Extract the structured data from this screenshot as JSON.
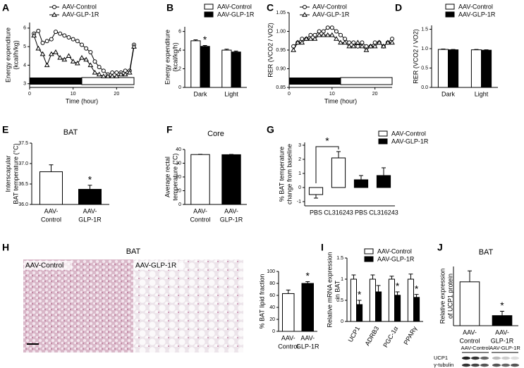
{
  "chart_data": [
    {
      "type": "line",
      "label": "A",
      "ylabel": [
        "Energy expenditure",
        "(kcal/h/kg)"
      ],
      "xlabel": "Time (hour)",
      "x": [
        1,
        2,
        3,
        4,
        5,
        6,
        7,
        8,
        9,
        10,
        11,
        12,
        13,
        14,
        15,
        16,
        17,
        18,
        19,
        20,
        21,
        22,
        23,
        24
      ],
      "series": [
        {
          "name": "AAV-Control",
          "color": "#000000",
          "marker": "circle",
          "values": [
            5.7,
            5.85,
            5.2,
            5.3,
            5.4,
            5.8,
            5.7,
            5.6,
            5.5,
            5.4,
            5.3,
            5.1,
            4.9,
            4.7,
            4.2,
            3.9,
            3.7,
            3.5,
            3.6,
            3.6,
            3.6,
            3.7,
            3.7,
            5.1
          ]
        },
        {
          "name": "AAV-GLP-1R",
          "color": "#000000",
          "marker": "triangle",
          "values": [
            5.6,
            4.9,
            4.6,
            4.0,
            4.6,
            4.7,
            4.4,
            4.3,
            4.5,
            4.2,
            4.1,
            4.4,
            4.3,
            4.0,
            3.6,
            3.5,
            3.4,
            3.4,
            3.4,
            3.4,
            3.5,
            3.5,
            3.6,
            5.0
          ]
        }
      ],
      "xlim": [
        0,
        24
      ],
      "xticks": [
        0,
        10,
        20
      ],
      "ylim": [
        2.8,
        6.3
      ],
      "yticks": [
        3,
        4,
        5,
        6
      ],
      "dark": [
        0,
        12
      ],
      "legend": "top"
    },
    {
      "type": "bar",
      "label": "B",
      "ylabel": [
        "Energy expenditure",
        "(kcal/kg/h)"
      ],
      "categories": [
        [
          "Dark"
        ],
        [
          "Light"
        ]
      ],
      "series": [
        {
          "name": "AAV-Control",
          "color": "#ffffff",
          "values": [
            5.0,
            4.0
          ],
          "errors": [
            0.1,
            0.1
          ]
        },
        {
          "name": "AAV-GLP-1R",
          "color": "#000000",
          "values": [
            4.4,
            3.8
          ],
          "errors": [
            0.1,
            0.1
          ],
          "annotations": [
            "*",
            null
          ]
        }
      ],
      "ylim": [
        0,
        6.5
      ],
      "yticks": [
        0,
        2,
        4,
        6
      ],
      "legend": "top"
    },
    {
      "type": "line",
      "label": "C",
      "ylabel": [
        "RER (VCO2 / VO2)"
      ],
      "xlabel": "Time (hour)",
      "x": [
        1,
        2,
        3,
        4,
        5,
        6,
        7,
        8,
        9,
        10,
        11,
        12,
        13,
        14,
        15,
        16,
        17,
        18,
        19,
        20,
        21,
        22,
        23,
        24
      ],
      "series": [
        {
          "name": "AAV-Control",
          "color": "#000000",
          "marker": "circle",
          "values": [
            0.96,
            0.97,
            0.98,
            0.98,
            0.99,
            0.99,
            1.0,
            1.0,
            1.01,
            1.01,
            1.0,
            0.99,
            0.98,
            0.97,
            0.97,
            0.96,
            0.97,
            0.96,
            0.96,
            0.97,
            0.97,
            0.96,
            0.97,
            0.98
          ]
        },
        {
          "name": "AAV-GLP-1R",
          "color": "#000000",
          "marker": "triangle",
          "values": [
            0.95,
            0.97,
            0.97,
            0.98,
            0.98,
            0.98,
            0.99,
            0.99,
            0.99,
            0.99,
            0.98,
            0.97,
            0.97,
            0.96,
            0.96,
            0.97,
            0.96,
            0.95,
            0.96,
            0.96,
            0.97,
            0.96,
            0.97,
            0.97
          ]
        }
      ],
      "xlim": [
        0,
        24
      ],
      "xticks": [
        0,
        10,
        20
      ],
      "ylim": [
        0.85,
        1.05
      ],
      "yticks": [
        0.85,
        {
          "value": 0.9,
          "label": "0.90"
        },
        0.95,
        {
          "value": 1,
          "label": "1.00"
        },
        1.05
      ],
      "dark": [
        0,
        12
      ],
      "legend": "top"
    },
    {
      "type": "bar",
      "label": "D",
      "ylabel": [
        "RER (VCO2 / VO2)"
      ],
      "categories": [
        [
          "Dark"
        ],
        [
          "Light"
        ]
      ],
      "series": [
        {
          "name": "AAV-Control",
          "color": "#ffffff",
          "values": [
            0.98,
            0.97
          ],
          "errors": [
            0.01,
            0.01
          ]
        },
        {
          "name": "AAV-GLP-1R",
          "color": "#000000",
          "values": [
            0.97,
            0.96
          ],
          "errors": [
            0.01,
            0.01
          ]
        }
      ],
      "ylim": [
        0,
        1.6
      ],
      "yticks": [
        {
          "value": 0,
          "label": "0.0"
        },
        0.5,
        {
          "value": 1,
          "label": "1.0"
        },
        1.5
      ],
      "legend": "top"
    },
    {
      "type": "bar",
      "label": "E",
      "title": "BAT",
      "ylabel": [
        "Interscapular",
        "BAT temperature (°C)"
      ],
      "categories": [
        [
          "AAV-",
          "Control"
        ],
        [
          "AAV-",
          "GLP-1R"
        ]
      ],
      "series": [
        {
          "color": "#ffffff",
          "values": [
            36.8,
            null
          ],
          "errors": [
            0.17,
            null
          ]
        },
        {
          "color": "#000000",
          "values": [
            null,
            36.37
          ],
          "errors": [
            null,
            0.1
          ],
          "annotations": [
            null,
            "*"
          ]
        }
      ],
      "ylim": [
        36,
        37.5
      ],
      "yticks": [
        {
          "value": 36,
          "label": "36.0"
        },
        36.5,
        {
          "value": 37,
          "label": "37.0"
        },
        37.5
      ]
    },
    {
      "type": "bar",
      "label": "F",
      "title": "Core",
      "ylabel": [
        "Average rectal",
        "temperature (°C)"
      ],
      "categories": [
        [
          "AAV-",
          "Control"
        ],
        [
          "AAV-",
          "GLP-1R"
        ]
      ],
      "series": [
        {
          "color": "#ffffff",
          "values": [
            36.3,
            null
          ],
          "errors": [
            0.2,
            null
          ]
        },
        {
          "color": "#000000",
          "values": [
            null,
            36.2
          ],
          "errors": [
            null,
            0.2
          ]
        }
      ],
      "ylim": [
        0,
        40
      ],
      "yticks": [
        0,
        10,
        20,
        30,
        40
      ]
    },
    {
      "type": "bar",
      "label": "G",
      "ylabel": [
        "% BAT temperature",
        "change from baseline"
      ],
      "categories": [
        [
          "PBS"
        ],
        [
          "CL316243"
        ],
        [
          "PBS"
        ],
        [
          "CL316243"
        ]
      ],
      "series": [
        {
          "name": "AAV-Control",
          "color": "#ffffff",
          "values": [
            -0.5,
            2.1,
            null,
            null
          ],
          "errors": [
            0.25,
            0.45,
            null,
            null
          ],
          "annotations": [
            null,
            "*",
            null,
            null
          ]
        },
        {
          "name": "AAV-GLP-1R",
          "color": "#000000",
          "values": [
            null,
            null,
            0.55,
            0.85
          ],
          "errors": [
            null,
            null,
            0.3,
            0.55
          ]
        }
      ],
      "ylim": [
        -1.3,
        3.2
      ],
      "yticks": [
        -1,
        0,
        1,
        2,
        3
      ],
      "legend": "top-right"
    },
    {
      "type": "image",
      "label": "H",
      "title": "BAT",
      "panels": [
        "AAV-Control",
        "AAV-GLP-1R"
      ]
    },
    {
      "type": "bar",
      "ylabel": [
        "% BAT lipid fraction"
      ],
      "categories": [
        [
          "AAV-",
          "Control"
        ],
        [
          "AAV-",
          "GLP-1R"
        ]
      ],
      "series": [
        {
          "color": "#ffffff",
          "values": [
            63,
            null
          ],
          "errors": [
            6,
            null
          ]
        },
        {
          "color": "#000000",
          "values": [
            null,
            80
          ],
          "errors": [
            null,
            3
          ],
          "annotations": [
            null,
            "*"
          ]
        }
      ],
      "ylim": [
        0,
        100
      ],
      "yticks": [
        0,
        20,
        40,
        60,
        80,
        100
      ]
    },
    {
      "type": "bar",
      "label": "I",
      "ylabel": [
        "Relative mRNA expression",
        "in BAT"
      ],
      "categories": [
        [
          "UCP1"
        ],
        [
          "ADRB3"
        ],
        [
          "PGC-1α"
        ],
        [
          "PPARγ"
        ]
      ],
      "series": [
        {
          "name": "AAV-Control",
          "color": "#ffffff",
          "values": [
            1.0,
            1.0,
            1.0,
            1.0
          ],
          "errors": [
            0.1,
            0.1,
            0.07,
            0.12
          ]
        },
        {
          "name": "AAV-GLP-1R",
          "color": "#000000",
          "values": [
            0.4,
            0.7,
            0.62,
            0.57
          ],
          "errors": [
            0.1,
            0.15,
            0.08,
            0.07
          ],
          "annotations": [
            "*",
            null,
            "*",
            "*"
          ]
        }
      ],
      "ylim": [
        0,
        1.5
      ],
      "yticks": [
        0,
        0.5,
        1,
        1.5
      ],
      "legend": "top"
    },
    {
      "type": "bar",
      "label": "J",
      "title": "BAT",
      "ylabel": [
        "Relative expression",
        "of UCP1 protein"
      ],
      "categories": [
        [
          "AAV-",
          "Control"
        ],
        [
          "AAV-",
          "GLP-1R"
        ]
      ],
      "series": [
        {
          "color": "#ffffff",
          "values": [
            1.0,
            null
          ],
          "errors": [
            0.25,
            null
          ]
        },
        {
          "color": "#000000",
          "values": [
            null,
            0.23
          ],
          "errors": [
            null,
            0.1
          ],
          "annotations": [
            null,
            "*"
          ]
        }
      ],
      "ylim": [
        0,
        1.35
      ]
    },
    {
      "type": "blot",
      "lanes": [
        "AAV-Control",
        "AAV-GLP-1R"
      ],
      "bands": [
        "UCP1",
        "γ-tubulin"
      ]
    }
  ]
}
